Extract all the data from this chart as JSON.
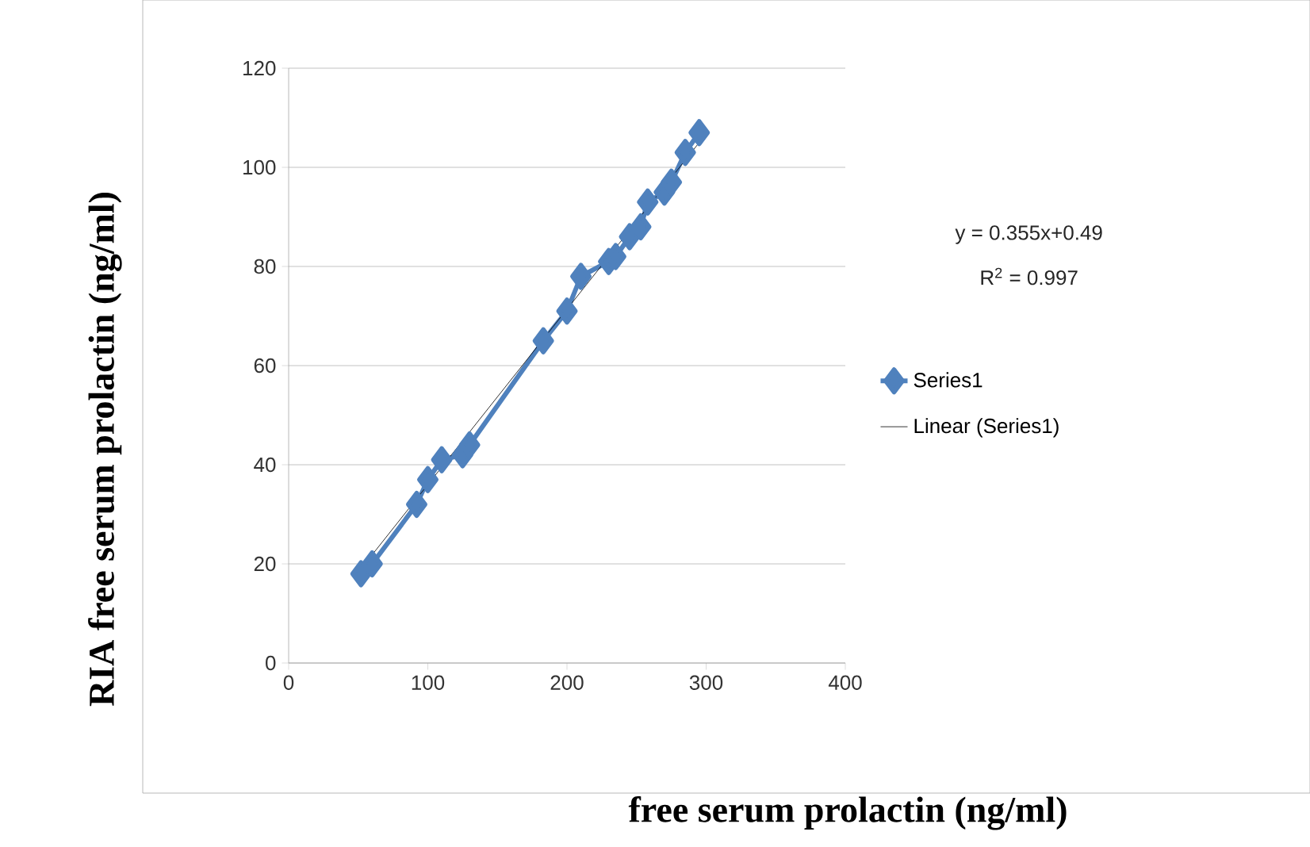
{
  "chart_data": {
    "type": "line",
    "xlabel": "free serum prolactin (ng/ml)",
    "ylabel": "RIA free serum prolactin (ng/ml)",
    "annotations": [
      "y = 0.355x+0.49",
      "R$^{2}$ = 0.997"
    ],
    "series": [
      {
        "name": "Series1",
        "color": "#4f81bd",
        "marker": "diamond",
        "x": [
          52,
          60,
          92,
          100,
          110,
          125,
          130,
          183,
          200,
          210,
          230,
          235,
          245,
          253,
          258,
          270,
          275,
          285,
          295
        ],
        "values": [
          18,
          20,
          32,
          37,
          41,
          42,
          44,
          65,
          71,
          78,
          81,
          82,
          86,
          88,
          93,
          95,
          97,
          103,
          107
        ]
      },
      {
        "name": "Linear (Series1)",
        "color": "#000000",
        "marker": "none",
        "x": [
          52,
          295
        ],
        "values": [
          19,
          105
        ]
      }
    ],
    "xlim": [
      0,
      400
    ],
    "xticks": [
      0,
      100,
      200,
      300,
      400
    ],
    "ylim": [
      0,
      120
    ],
    "yticks": [
      0,
      20,
      40,
      60,
      80,
      100,
      120
    ],
    "grid": "y",
    "legend": "right"
  }
}
